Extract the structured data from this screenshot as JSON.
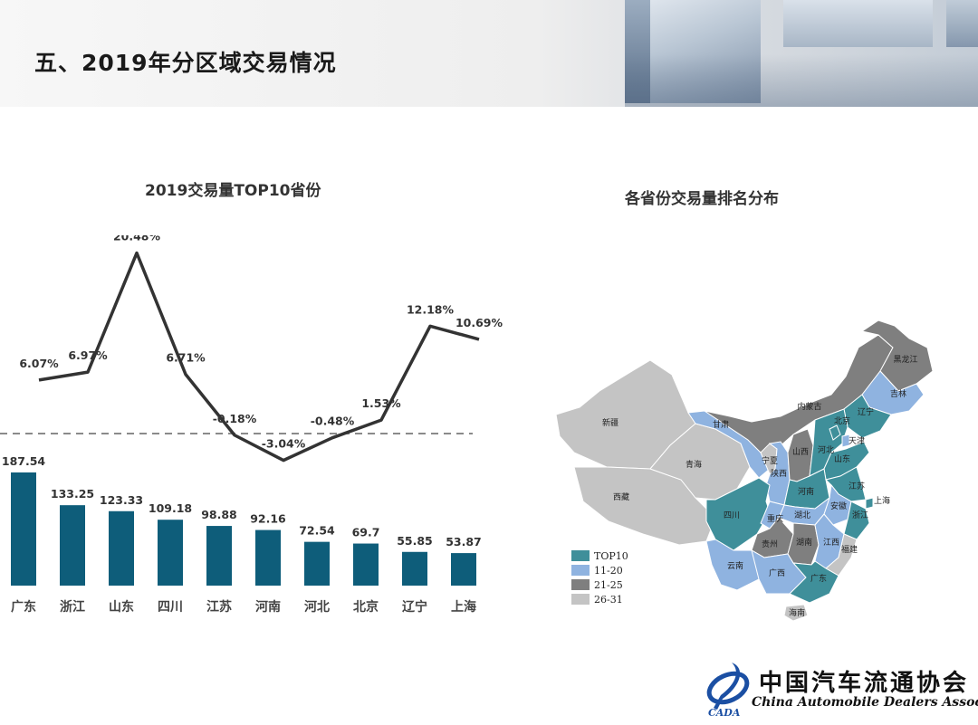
{
  "page": {
    "title": "五、2019年分区域交易情况"
  },
  "chart_data": {
    "type": "bar",
    "title": "2019交易量TOP10省份",
    "categories": [
      "广东",
      "浙江",
      "山东",
      "四川",
      "江苏",
      "河南",
      "河北",
      "北京",
      "辽宁",
      "上海"
    ],
    "series": [
      {
        "type": "bar",
        "values": [
          187.54,
          133.25,
          123.33,
          109.18,
          98.88,
          92.16,
          72.54,
          69.7,
          55.85,
          53.87
        ],
        "labels": [
          "187.54",
          "133.25",
          "123.33",
          "109.18",
          "98.88",
          "92.16",
          "72.54",
          "69.7",
          "55.85",
          "53.87"
        ],
        "color": "#0e5d7a"
      },
      {
        "type": "line",
        "values": [
          6.07,
          6.97,
          20.48,
          6.71,
          -0.18,
          -3.04,
          -0.48,
          1.53,
          12.18,
          10.69
        ],
        "labels": [
          "6.07%",
          "6.97%",
          "20.48%",
          "6.71%",
          "-0.18%",
          "-3.04%",
          "-0.48%",
          "1.53%",
          "12.18%",
          "10.69%"
        ],
        "color": "#333333"
      }
    ],
    "bar_ylim": [
      0,
      200
    ],
    "line_ylim": [
      -6,
      24
    ],
    "reference_line": 0,
    "grid": false
  },
  "map": {
    "title": "各省份交易量排名分布",
    "legend": [
      {
        "label": "TOP10",
        "color": "#3f8f9a"
      },
      {
        "label": "11-20",
        "color": "#8fb3e0"
      },
      {
        "label": "21-25",
        "color": "#7f7f7f"
      },
      {
        "label": "26-31",
        "color": "#c4c4c4"
      }
    ],
    "regions": [
      {
        "label": "新疆",
        "tier": "26-31"
      },
      {
        "label": "西藏",
        "tier": "26-31"
      },
      {
        "label": "青海",
        "tier": "26-31"
      },
      {
        "label": "甘肃",
        "tier": "11-20"
      },
      {
        "label": "内蒙古",
        "tier": "21-25"
      },
      {
        "label": "黑龙江",
        "tier": "21-25"
      },
      {
        "label": "吉林",
        "tier": "11-20"
      },
      {
        "label": "辽宁",
        "tier": "TOP10"
      },
      {
        "label": "宁夏",
        "tier": "26-31"
      },
      {
        "label": "陕西",
        "tier": "11-20"
      },
      {
        "label": "山西",
        "tier": "21-25"
      },
      {
        "label": "河北",
        "tier": "TOP10"
      },
      {
        "label": "北京",
        "tier": "TOP10"
      },
      {
        "label": "天津",
        "tier": "11-20"
      },
      {
        "label": "山东",
        "tier": "TOP10"
      },
      {
        "label": "河南",
        "tier": "TOP10"
      },
      {
        "label": "江苏",
        "tier": "TOP10"
      },
      {
        "label": "安徽",
        "tier": "11-20"
      },
      {
        "label": "上海",
        "tier": "TOP10"
      },
      {
        "label": "湖北",
        "tier": "11-20"
      },
      {
        "label": "浙江",
        "tier": "TOP10"
      },
      {
        "label": "四川",
        "tier": "TOP10"
      },
      {
        "label": "重庆",
        "tier": "11-20"
      },
      {
        "label": "贵州",
        "tier": "21-25"
      },
      {
        "label": "湖南",
        "tier": "21-25"
      },
      {
        "label": "江西",
        "tier": "11-20"
      },
      {
        "label": "福建",
        "tier": "26-31"
      },
      {
        "label": "云南",
        "tier": "11-20"
      },
      {
        "label": "广西",
        "tier": "11-20"
      },
      {
        "label": "广东",
        "tier": "TOP10"
      },
      {
        "label": "海南",
        "tier": "26-31"
      }
    ]
  },
  "logo": {
    "name_cn": "中国汽车流通协会",
    "name_en": "China Automobile Dealers Association",
    "abbr": "CADA"
  }
}
